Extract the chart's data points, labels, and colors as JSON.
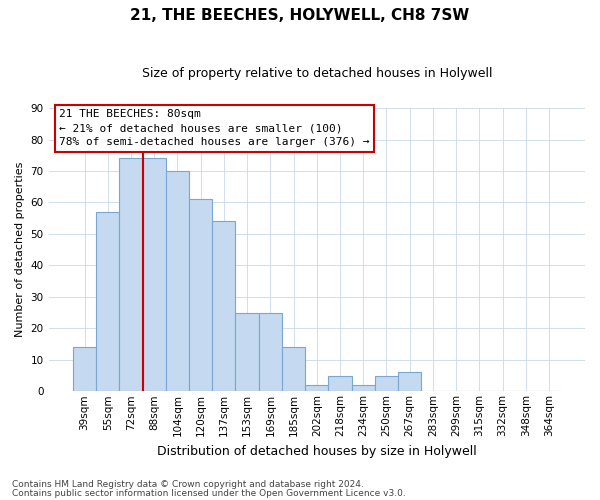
{
  "title": "21, THE BEECHES, HOLYWELL, CH8 7SW",
  "subtitle": "Size of property relative to detached houses in Holywell",
  "xlabel": "Distribution of detached houses by size in Holywell",
  "ylabel": "Number of detached properties",
  "bar_labels": [
    "39sqm",
    "55sqm",
    "72sqm",
    "88sqm",
    "104sqm",
    "120sqm",
    "137sqm",
    "153sqm",
    "169sqm",
    "185sqm",
    "202sqm",
    "218sqm",
    "234sqm",
    "250sqm",
    "267sqm",
    "283sqm",
    "299sqm",
    "315sqm",
    "332sqm",
    "348sqm",
    "364sqm"
  ],
  "bar_values": [
    14,
    57,
    74,
    74,
    70,
    61,
    54,
    25,
    25,
    14,
    2,
    5,
    2,
    5,
    6,
    0,
    0,
    0,
    0,
    0,
    0
  ],
  "bar_color": "#c5d9f0",
  "bar_edge_color": "#7aa6d2",
  "vline_color": "#cc0000",
  "ylim": [
    0,
    90
  ],
  "yticks": [
    0,
    10,
    20,
    30,
    40,
    50,
    60,
    70,
    80,
    90
  ],
  "annotation_title": "21 THE BEECHES: 80sqm",
  "annotation_line1": "← 21% of detached houses are smaller (100)",
  "annotation_line2": "78% of semi-detached houses are larger (376) →",
  "annotation_box_color": "#ffffff",
  "annotation_box_edge": "#cc0000",
  "footnote1": "Contains HM Land Registry data © Crown copyright and database right 2024.",
  "footnote2": "Contains public sector information licensed under the Open Government Licence v3.0.",
  "title_fontsize": 11,
  "subtitle_fontsize": 9,
  "xlabel_fontsize": 9,
  "ylabel_fontsize": 8,
  "tick_fontsize": 7.5,
  "footnote_fontsize": 6.5
}
